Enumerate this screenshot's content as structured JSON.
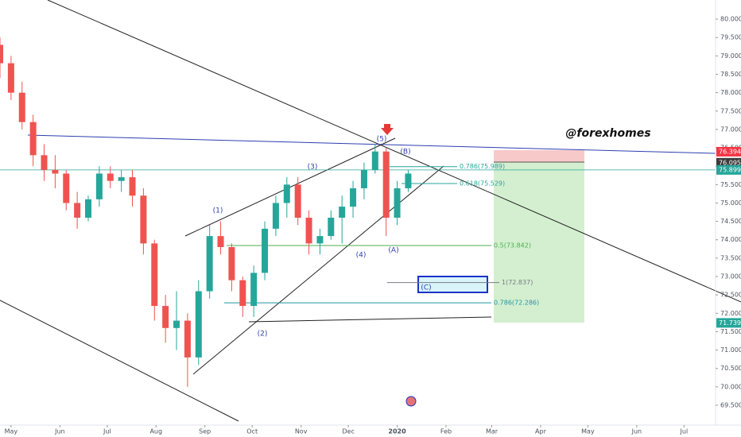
{
  "chart_data": {
    "type": "candlestick",
    "x": [
      -7,
      0,
      7,
      14,
      21,
      28,
      35,
      42,
      49,
      56,
      63,
      70,
      77,
      84,
      91,
      98,
      105,
      112,
      119,
      126,
      133,
      140,
      147,
      154,
      161,
      168,
      175,
      182,
      189,
      196,
      203,
      210,
      217,
      224,
      231,
      238,
      245,
      252
    ],
    "open": [
      79.3,
      78.8,
      78.0,
      77.2,
      76.3,
      75.9,
      75.8,
      75.0,
      74.6,
      75.1,
      75.8,
      75.6,
      75.7,
      75.2,
      73.9,
      72.2,
      71.6,
      71.8,
      70.8,
      72.6,
      74.1,
      73.8,
      72.9,
      72.2,
      73.1,
      74.3,
      75.0,
      75.5,
      74.6,
      73.9,
      74.1,
      74.6,
      74.9,
      75.4,
      75.9,
      76.4,
      74.6,
      75.4
    ],
    "high": [
      79.5,
      79.0,
      78.3,
      77.4,
      76.6,
      76.3,
      75.9,
      75.3,
      75.2,
      76.0,
      76.0,
      75.9,
      75.9,
      75.4,
      74.0,
      72.5,
      72.6,
      72.0,
      72.9,
      74.4,
      74.5,
      73.9,
      73.0,
      73.3,
      74.5,
      75.2,
      75.7,
      75.7,
      74.8,
      74.3,
      74.8,
      75.2,
      75.6,
      76.1,
      76.6,
      76.5,
      75.6,
      75.9
    ],
    "low": [
      78.4,
      77.8,
      77.0,
      76.0,
      75.6,
      75.4,
      74.8,
      74.3,
      74.5,
      74.9,
      75.4,
      75.3,
      74.9,
      73.6,
      71.8,
      71.2,
      71.0,
      70.0,
      70.6,
      72.4,
      73.6,
      72.6,
      71.9,
      71.9,
      72.9,
      74.1,
      74.6,
      74.4,
      73.6,
      73.6,
      74.0,
      73.9,
      74.6,
      75.1,
      75.8,
      74.1,
      74.4,
      75.3
    ],
    "close": [
      78.8,
      78.0,
      77.2,
      76.3,
      75.9,
      75.8,
      75.0,
      74.6,
      75.1,
      75.8,
      75.6,
      75.7,
      75.2,
      73.9,
      72.2,
      71.6,
      71.8,
      70.8,
      72.6,
      74.1,
      73.8,
      72.9,
      72.2,
      73.1,
      74.3,
      75.0,
      75.5,
      74.6,
      73.9,
      74.1,
      74.6,
      74.9,
      75.4,
      75.9,
      76.4,
      74.6,
      75.4,
      75.8
    ],
    "up_color": "#26a69a",
    "down_color": "#ef5350",
    "xlim": [
      -7,
      447
    ],
    "xticks": [
      {
        "value": 0,
        "label": "May"
      },
      {
        "value": 31,
        "label": "Jun"
      },
      {
        "value": 61,
        "label": "Jul"
      },
      {
        "value": 92,
        "label": "Aug"
      },
      {
        "value": 123,
        "label": "Sep"
      },
      {
        "value": 153,
        "label": "Oct"
      },
      {
        "value": 184,
        "label": "Nov"
      },
      {
        "value": 214,
        "label": "Dec"
      },
      {
        "value": 245,
        "label": "2020"
      },
      {
        "value": 276,
        "label": "Feb"
      },
      {
        "value": 305,
        "label": "Mar"
      },
      {
        "value": 336,
        "label": "Apr"
      },
      {
        "value": 366,
        "label": "May"
      },
      {
        "value": 397,
        "label": "Jun"
      },
      {
        "value": 427,
        "label": "Jul"
      }
    ],
    "ylim": [
      68.96,
      80.52
    ],
    "yticks": [
      {
        "value": 69.5,
        "label": "69.500"
      },
      {
        "value": 70,
        "label": "70.000"
      },
      {
        "value": 70.5,
        "label": "70.500"
      },
      {
        "value": 71,
        "label": "71.000"
      },
      {
        "value": 71.5,
        "label": "71.500"
      },
      {
        "value": 72,
        "label": "72.000"
      },
      {
        "value": 72.5,
        "label": "72.500"
      },
      {
        "value": 73,
        "label": "73.000"
      },
      {
        "value": 73.5,
        "label": "73.500"
      },
      {
        "value": 74,
        "label": "74.000"
      },
      {
        "value": 74.5,
        "label": "74.500"
      },
      {
        "value": 75,
        "label": "75.000"
      },
      {
        "value": 75.5,
        "label": "75.500"
      },
      {
        "value": 76,
        "label": "76.000"
      },
      {
        "value": 76.5,
        "label": "76.500"
      },
      {
        "value": 77,
        "label": "77.000"
      },
      {
        "value": 77.5,
        "label": "77.500"
      },
      {
        "value": 78,
        "label": "78.000"
      },
      {
        "value": 78.5,
        "label": "78.500"
      },
      {
        "value": 79,
        "label": "79.000"
      },
      {
        "value": 79.5,
        "label": "79.500"
      },
      {
        "value": 80,
        "label": "80.000"
      }
    ],
    "price_labels": [
      {
        "value": 76.394,
        "label": "76.394",
        "color": "#f23645"
      },
      {
        "value": 76.095,
        "label": "76.095",
        "color": "#3b3b3b"
      },
      {
        "value": 75.899,
        "label": "75.899",
        "color": "#26a69a"
      },
      {
        "value": 71.739,
        "label": "71.739",
        "color": "#26a69a"
      }
    ],
    "fib_levels": [
      {
        "value": 75.989,
        "label": "0.786(75.989)",
        "color": "#26a69a"
      },
      {
        "value": 75.529,
        "label": "0.618(75.529)",
        "color": "#26a69a"
      },
      {
        "value": 73.842,
        "label": "0.5(73.842)",
        "color": "#4caf50"
      },
      {
        "value": 72.837,
        "label": "1(72.837)",
        "color": "#787b86"
      },
      {
        "value": 72.286,
        "label": "0.786(72.286)",
        "color": "#2196a3"
      }
    ],
    "wave_labels": [
      "(1)",
      "(2)",
      "(3)",
      "(4)",
      "(5)",
      "(A)",
      "(B)",
      "(C)"
    ],
    "watermark": "@forexhomes"
  }
}
